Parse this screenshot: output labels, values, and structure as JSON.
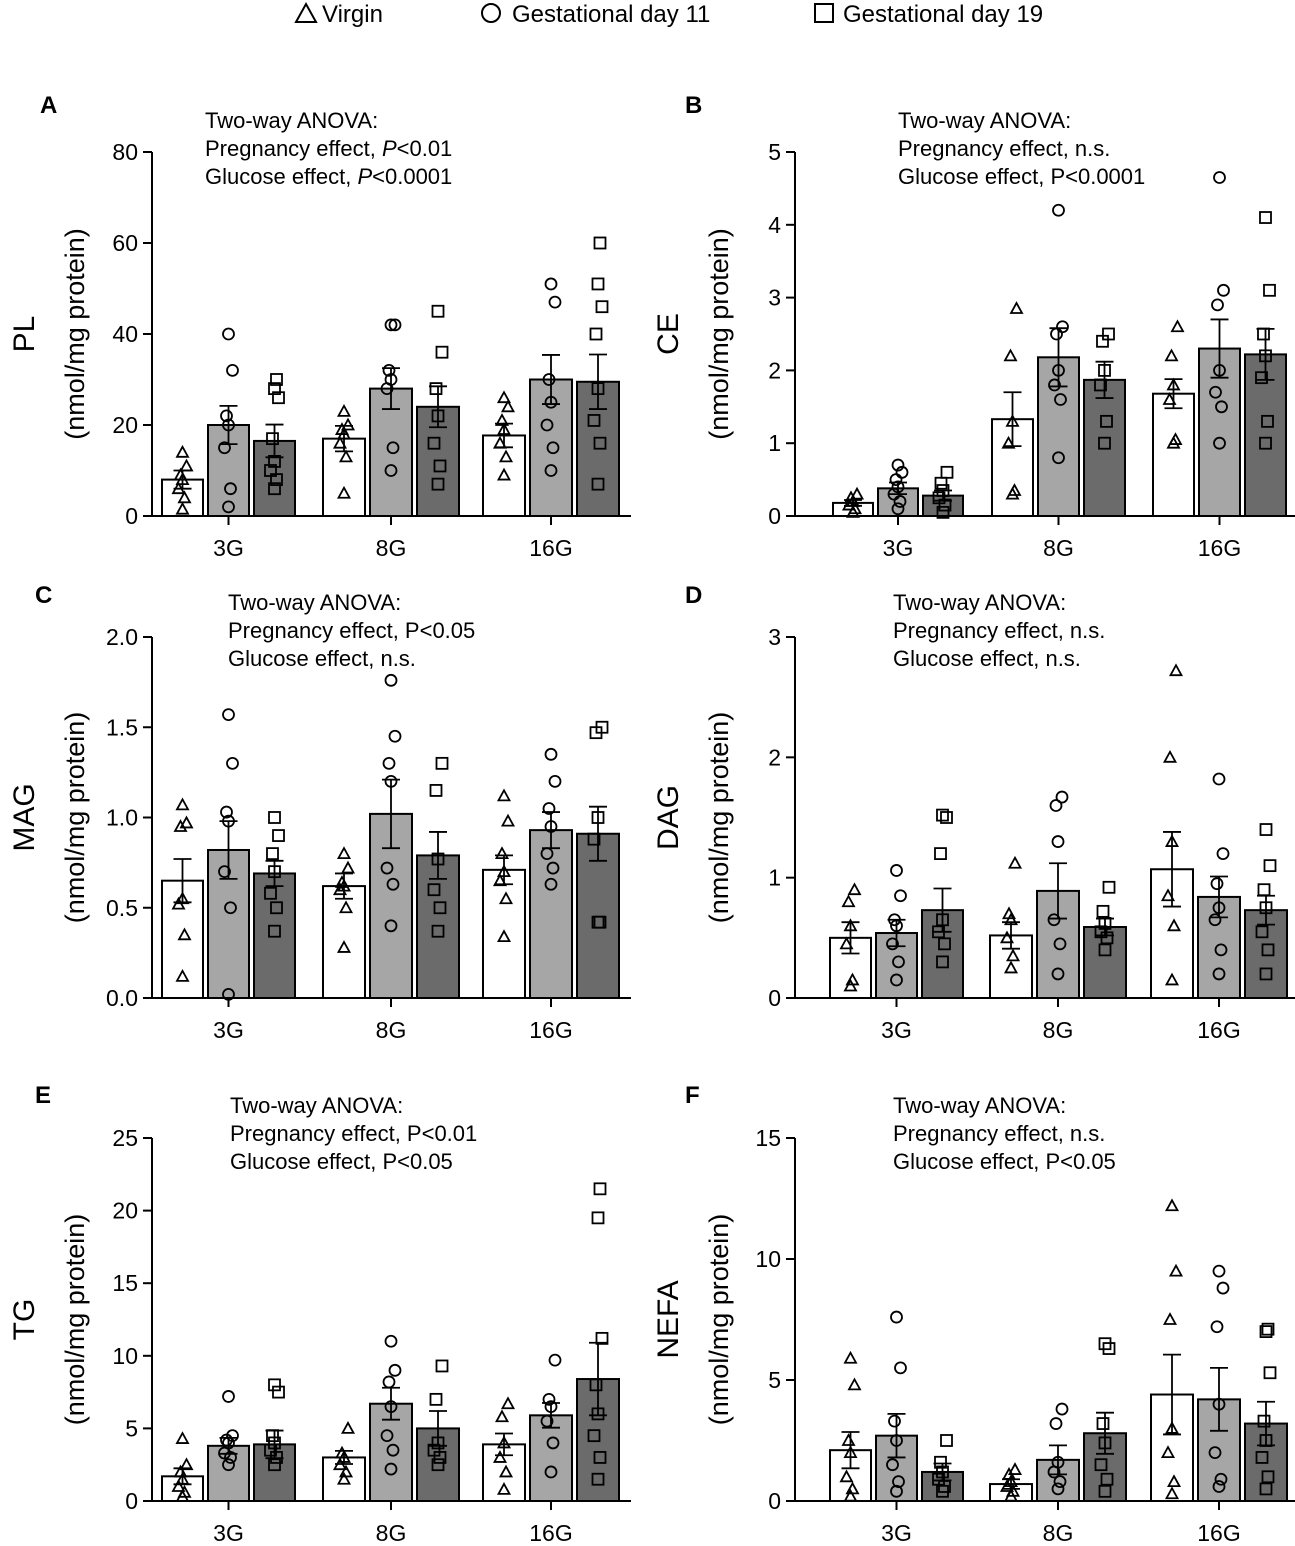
{
  "legend": {
    "items": [
      {
        "label": "Virgin",
        "marker": "triangle"
      },
      {
        "label": "Gestational day 11",
        "marker": "circle"
      },
      {
        "label": "Gestational day 19",
        "marker": "square"
      }
    ]
  },
  "colors": {
    "virgin": "#ffffff",
    "gd11": "#a6a6a6",
    "gd19": "#6b6b6b",
    "stroke": "#000000"
  },
  "chart_data": [
    {
      "type": "bar",
      "panel": "A",
      "ylabel_top": "PL",
      "ylabel_bottom": "(nmol/mg protein)",
      "annotation": [
        [
          {
            "t": "Two-way ANOVA:",
            "i": false
          }
        ],
        [
          {
            "t": "Pregnancy effect, ",
            "i": false
          },
          {
            "t": "P",
            "i": true
          },
          {
            "t": "<0.01",
            "i": false
          }
        ],
        [
          {
            "t": "Glucose effect, ",
            "i": false
          },
          {
            "t": "P",
            "i": true
          },
          {
            "t": "<0.0001",
            "i": false
          }
        ]
      ],
      "categories": [
        "3G",
        "8G",
        "16G"
      ],
      "yticks": [
        "0",
        "20",
        "40",
        "60",
        "80"
      ],
      "ymax": 80,
      "series": [
        {
          "name": "Virgin",
          "values": [
            8,
            17,
            17.7
          ],
          "sem": [
            2,
            2.8,
            2.6
          ],
          "points": [
            [
              1.5,
              4,
              6,
              8,
              9,
              11,
              14
            ],
            [
              5,
              13,
              16,
              18,
              19,
              20,
              23
            ],
            [
              9,
              13,
              16,
              19,
              21,
              24,
              26
            ]
          ]
        },
        {
          "name": "Gestational day 11",
          "values": [
            20,
            28,
            30
          ],
          "sem": [
            4.2,
            4.5,
            5.4
          ],
          "points": [
            [
              2,
              6,
              15,
              20,
              22,
              32,
              40
            ],
            [
              10,
              15,
              28,
              30,
              32,
              42,
              42
            ],
            [
              10,
              15,
              20,
              25,
              30,
              47,
              51
            ]
          ]
        },
        {
          "name": "Gestational day 19",
          "values": [
            16.5,
            24,
            29.5
          ],
          "sem": [
            3.6,
            4.5,
            6
          ],
          "points": [
            [
              6,
              8,
              10,
              12,
              17,
              26,
              28,
              30
            ],
            [
              7,
              11,
              16,
              22,
              28,
              36,
              45
            ],
            [
              7,
              16,
              21,
              28,
              40,
              46,
              51,
              60
            ]
          ]
        }
      ]
    },
    {
      "type": "bar",
      "panel": "B",
      "ylabel_top": "CE",
      "ylabel_bottom": "(nmol/mg protein)",
      "annotation": [
        [
          {
            "t": "Two-way ANOVA:",
            "i": false
          }
        ],
        [
          {
            "t": "Pregnancy effect, n.s.",
            "i": false
          }
        ],
        [
          {
            "t": "Glucose effect, P<0.0001",
            "i": false
          }
        ]
      ],
      "categories": [
        "3G",
        "8G",
        "16G"
      ],
      "yticks": [
        "0",
        "1",
        "2",
        "3",
        "4",
        "5"
      ],
      "ymax": 5,
      "series": [
        {
          "name": "Virgin",
          "values": [
            0.18,
            1.33,
            1.68
          ],
          "sem": [
            0.04,
            0.37,
            0.2
          ],
          "points": [
            [
              0.05,
              0.1,
              0.15,
              0.2,
              0.25,
              0.3
            ],
            [
              0.3,
              0.35,
              1,
              1.3,
              2.2,
              2.85
            ],
            [
              1,
              1.05,
              1.6,
              1.8,
              2.2,
              2.6
            ]
          ]
        },
        {
          "name": "Gestational day 11",
          "values": [
            0.38,
            2.18,
            2.3
          ],
          "sem": [
            0.08,
            0.4,
            0.4
          ],
          "points": [
            [
              0.1,
              0.2,
              0.3,
              0.4,
              0.5,
              0.6,
              0.7
            ],
            [
              0.8,
              1.6,
              1.8,
              2,
              2.5,
              2.6,
              4.2
            ],
            [
              1,
              1.5,
              1.7,
              2,
              2.9,
              3.1,
              4.65
            ]
          ]
        },
        {
          "name": "Gestational day 19",
          "values": [
            0.28,
            1.87,
            2.22
          ],
          "sem": [
            0.07,
            0.25,
            0.35
          ],
          "points": [
            [
              0.05,
              0.15,
              0.25,
              0.35,
              0.45,
              0.6
            ],
            [
              1,
              1.3,
              1.8,
              2,
              2.4,
              2.5
            ],
            [
              1,
              1.3,
              1.9,
              2.2,
              2.5,
              3.1,
              4.1
            ]
          ]
        }
      ]
    },
    {
      "type": "bar",
      "panel": "C",
      "ylabel_top": "MAG",
      "ylabel_bottom": "(nmol/mg protein)",
      "annotation": [
        [
          {
            "t": "Two-way ANOVA:",
            "i": false
          }
        ],
        [
          {
            "t": "Pregnancy effect, P<0.05",
            "i": false
          }
        ],
        [
          {
            "t": "Glucose effect, n.s.",
            "i": false
          }
        ]
      ],
      "categories": [
        "3G",
        "8G",
        "16G"
      ],
      "yticks": [
        "0.0",
        "0.5",
        "1.0",
        "1.5",
        "2.0"
      ],
      "ymax": 2,
      "series": [
        {
          "name": "Virgin",
          "values": [
            0.65,
            0.62,
            0.71
          ],
          "sem": [
            0.12,
            0.07,
            0.08
          ],
          "points": [
            [
              0.12,
              0.35,
              0.52,
              0.55,
              0.95,
              0.97,
              1.07
            ],
            [
              0.28,
              0.5,
              0.6,
              0.62,
              0.64,
              0.72,
              0.8
            ],
            [
              0.34,
              0.55,
              0.65,
              0.7,
              0.8,
              0.98,
              1.12
            ]
          ]
        },
        {
          "name": "Gestational day 11",
          "values": [
            0.82,
            1.02,
            0.93
          ],
          "sem": [
            0.16,
            0.19,
            0.1
          ],
          "points": [
            [
              0.02,
              0.5,
              0.7,
              0.98,
              1.03,
              1.3,
              1.57
            ],
            [
              0.4,
              0.63,
              0.72,
              1.2,
              1.3,
              1.45,
              1.76
            ],
            [
              0.63,
              0.72,
              0.8,
              0.95,
              1.05,
              1.2,
              1.35
            ]
          ]
        },
        {
          "name": "Gestational day 19",
          "values": [
            0.69,
            0.79,
            0.91
          ],
          "sem": [
            0.07,
            0.13,
            0.15
          ],
          "points": [
            [
              0.37,
              0.5,
              0.58,
              0.7,
              0.8,
              0.9,
              1
            ],
            [
              0.37,
              0.5,
              0.6,
              0.77,
              1.15,
              1.3
            ],
            [
              0.42,
              0.42,
              0.88,
              1,
              1.47,
              1.5
            ]
          ]
        }
      ]
    },
    {
      "type": "bar",
      "panel": "D",
      "ylabel_top": "DAG",
      "ylabel_bottom": "(nmol/mg protein)",
      "annotation": [
        [
          {
            "t": "Two-way ANOVA:",
            "i": false
          }
        ],
        [
          {
            "t": "Pregnancy effect, n.s.",
            "i": false
          }
        ],
        [
          {
            "t": "Glucose effect, n.s.",
            "i": false
          }
        ]
      ],
      "categories": [
        "3G",
        "8G",
        "16G"
      ],
      "yticks": [
        "0",
        "1",
        "2",
        "3"
      ],
      "ymax": 3,
      "series": [
        {
          "name": "Virgin",
          "values": [
            0.5,
            0.52,
            1.07
          ],
          "sem": [
            0.13,
            0.11,
            0.31
          ],
          "points": [
            [
              0.1,
              0.15,
              0.45,
              0.6,
              0.8,
              0.9
            ],
            [
              0.25,
              0.35,
              0.5,
              0.65,
              0.7,
              1.12
            ],
            [
              0.15,
              0.6,
              0.85,
              1.3,
              2,
              2.72
            ]
          ]
        },
        {
          "name": "Gestational day 11",
          "values": [
            0.54,
            0.89,
            0.84
          ],
          "sem": [
            0.11,
            0.23,
            0.17
          ],
          "points": [
            [
              0.15,
              0.3,
              0.45,
              0.6,
              0.65,
              0.85,
              1.06
            ],
            [
              0.2,
              0.45,
              0.65,
              1.3,
              1.6,
              1.67
            ],
            [
              0.2,
              0.4,
              0.65,
              0.75,
              0.95,
              1.2,
              1.82
            ]
          ]
        },
        {
          "name": "Gestational day 19",
          "values": [
            0.73,
            0.59,
            0.73
          ],
          "sem": [
            0.18,
            0.07,
            0.12
          ],
          "points": [
            [
              0.3,
              0.45,
              0.55,
              0.65,
              1.2,
              1.5,
              1.52
            ],
            [
              0.4,
              0.5,
              0.55,
              0.62,
              0.72,
              0.92
            ],
            [
              0.2,
              0.4,
              0.55,
              0.75,
              0.9,
              1.1,
              1.4
            ]
          ]
        }
      ]
    },
    {
      "type": "bar",
      "panel": "E",
      "ylabel_top": "TG",
      "ylabel_bottom": "(nmol/mg protein)",
      "annotation": [
        [
          {
            "t": "Two-way ANOVA:",
            "i": false
          }
        ],
        [
          {
            "t": "Pregnancy effect, P<0.01",
            "i": false
          }
        ],
        [
          {
            "t": "Glucose effect, P<0.05",
            "i": false
          }
        ]
      ],
      "categories": [
        "3G",
        "8G",
        "16G"
      ],
      "yticks": [
        "0",
        "5",
        "10",
        "15",
        "20",
        "25"
      ],
      "ymax": 25,
      "series": [
        {
          "name": "Virgin",
          "values": [
            1.7,
            3,
            3.9
          ],
          "sem": [
            0.55,
            0.45,
            0.75
          ],
          "points": [
            [
              0.3,
              0.6,
              1,
              1.5,
              2,
              2.5,
              4.3
            ],
            [
              1.5,
              2,
              2.5,
              3,
              3.3,
              5
            ],
            [
              0.8,
              2,
              3,
              4,
              5.8,
              6.7
            ]
          ]
        },
        {
          "name": "Gestational day 11",
          "values": [
            3.8,
            6.7,
            5.9
          ],
          "sem": [
            0.55,
            1.1,
            0.85
          ],
          "points": [
            [
              2.5,
              3,
              3.3,
              4,
              4.2,
              4.5,
              7.2
            ],
            [
              2.2,
              3.5,
              4.5,
              6.5,
              8.2,
              9,
              11
            ],
            [
              2,
              4,
              5.5,
              6.5,
              7,
              9.7
            ]
          ]
        },
        {
          "name": "Gestational day 19",
          "values": [
            3.9,
            5,
            8.4
          ],
          "sem": [
            0.95,
            1.2,
            2.5
          ],
          "points": [
            [
              2.5,
              3,
              3.5,
              4,
              4.5,
              7.5,
              8
            ],
            [
              2.5,
              3,
              3.5,
              4,
              7,
              9.3
            ],
            [
              1.5,
              3,
              4.5,
              6,
              8,
              11.2,
              19.5,
              21.5
            ]
          ]
        }
      ]
    },
    {
      "type": "bar",
      "panel": "F",
      "ylabel_top": "NEFA",
      "ylabel_bottom": "(nmol/mg protein)",
      "annotation": [
        [
          {
            "t": "Two-way ANOVA:",
            "i": false
          }
        ],
        [
          {
            "t": "Pregnancy effect, n.s.",
            "i": false
          }
        ],
        [
          {
            "t": "Glucose effect, P<0.05",
            "i": false
          }
        ]
      ],
      "categories": [
        "3G",
        "8G",
        "16G"
      ],
      "yticks": [
        "0",
        "5",
        "10",
        "15"
      ],
      "ymax": 15,
      "series": [
        {
          "name": "Virgin",
          "values": [
            2.1,
            0.7,
            4.4
          ],
          "sem": [
            0.75,
            0.2,
            1.65
          ],
          "points": [
            [
              0.2,
              0.5,
              1,
              2,
              2.5,
              4.8,
              5.9
            ],
            [
              0.2,
              0.4,
              0.6,
              0.8,
              1.1,
              1.3
            ],
            [
              0.3,
              0.8,
              2,
              3,
              7.5,
              9.5,
              12.2
            ]
          ]
        },
        {
          "name": "Gestational day 11",
          "values": [
            2.7,
            1.7,
            4.2
          ],
          "sem": [
            0.9,
            0.6,
            1.3
          ],
          "points": [
            [
              0.4,
              0.8,
              1.5,
              2.5,
              3.3,
              5.5,
              7.6
            ],
            [
              0.5,
              0.8,
              1.2,
              1.6,
              3.2,
              3.8
            ],
            [
              0.6,
              0.9,
              2,
              4,
              7.2,
              8.8,
              9.5
            ]
          ]
        },
        {
          "name": "Gestational day 19",
          "values": [
            1.2,
            2.8,
            3.2
          ],
          "sem": [
            0.35,
            0.85,
            0.9
          ],
          "points": [
            [
              0.4,
              0.6,
              0.9,
              1.2,
              1.6,
              2.5
            ],
            [
              0.4,
              0.9,
              1.5,
              2.4,
              3.2,
              6.3,
              6.5
            ],
            [
              0.5,
              1,
              1.8,
              2.5,
              3.3,
              5.3,
              7,
              7.1
            ]
          ]
        }
      ]
    }
  ]
}
